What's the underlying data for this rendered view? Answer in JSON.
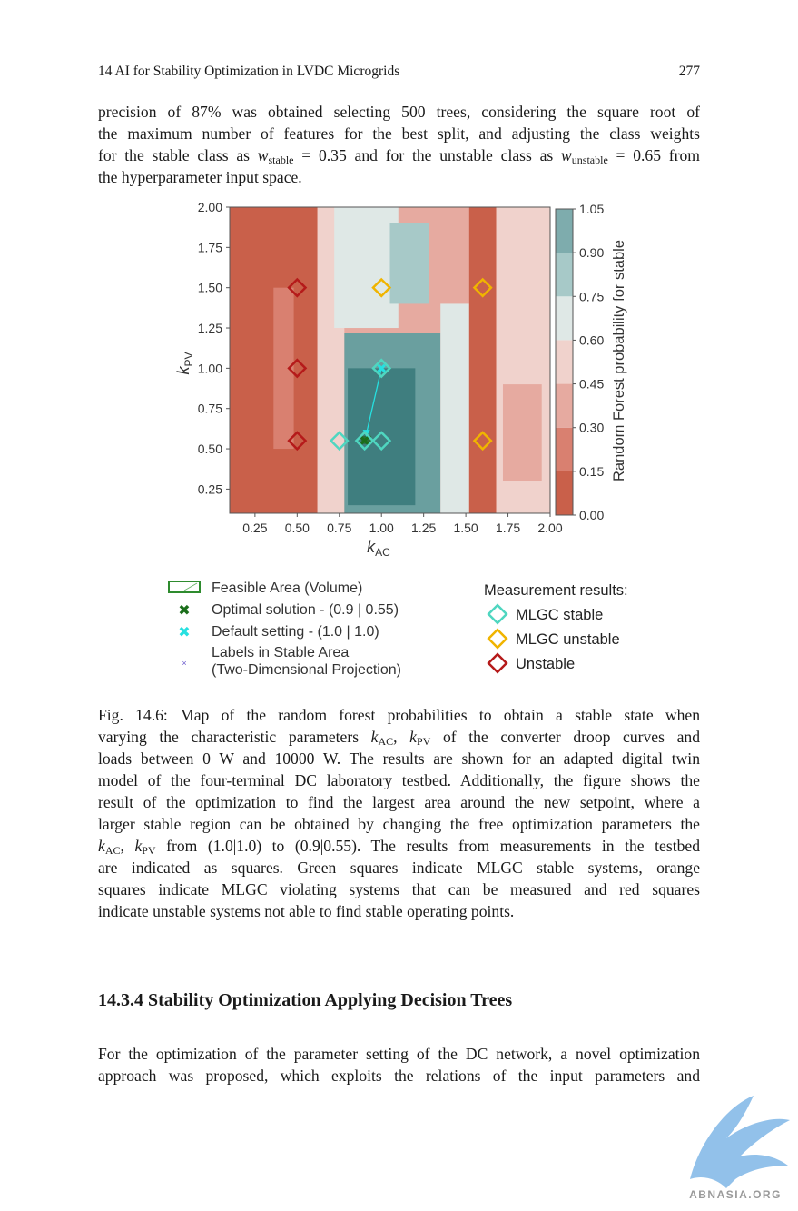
{
  "header": {
    "running_title": "14  AI for Stability Optimization in LVDC Microgrids",
    "page_number": "277"
  },
  "intro": {
    "line1": "precision of 87% was obtained selecting 500 trees, considering the square root of",
    "line2": "the maximum number of features for the best split, and adjusting the class weights",
    "line3_a": "for the stable class as ",
    "w_sym": "w",
    "sub_stable": "stable",
    "line3_b": " = 0.35 and for the unstable class as ",
    "sub_unstable": "unstable",
    "line3_c": " = 0.65 from",
    "line4": "the hyperparameter input space."
  },
  "figure": {
    "y_ticks": [
      "2.00",
      "1.75",
      "1.50",
      "1.25",
      "1.00",
      "0.75",
      "0.50",
      "0.25"
    ],
    "x_ticks": [
      "0.25",
      "0.50",
      "0.75",
      "1.00",
      "1.25",
      "1.50",
      "1.75",
      "2.00"
    ],
    "xlabel_k": "k",
    "xlabel_sub": "AC",
    "ylabel_k": "k",
    "ylabel_sub": "PV",
    "colorbar_ticks": [
      "1.05",
      "0.90",
      "0.75",
      "0.60",
      "0.45",
      "0.30",
      "0.15",
      "0.00"
    ],
    "colorbar_label": "Random Forest probability for stable",
    "legend": {
      "feasible": "Feasible Area (Volume)",
      "optimal": "Optimal solution - (0.9 | 0.55)",
      "default": "Default setting - (1.0 | 1.0)",
      "labels_1": "Labels in Stable Area",
      "labels_2": "(Two-Dimensional Projection)",
      "meas_title": "Measurement results:",
      "mlgc_stable": "MLGC stable",
      "mlgc_unstable": "MLGC unstable",
      "unstable": "Unstable"
    },
    "colors": {
      "stable": "#3f7e7f",
      "unstable": "#c9604a",
      "mlgc_stable": "#4fd6c0",
      "mlgc_unstable": "#f0b400",
      "unstable_marker": "#b51a1a",
      "optimal": "#1b6e1b",
      "default": "#26e0e0"
    }
  },
  "chart_data": {
    "type": "heatmap",
    "xlabel": "kAC",
    "ylabel": "kPV",
    "xlim": [
      0.1,
      2.0
    ],
    "ylim": [
      0.1,
      2.0
    ],
    "colorbar": {
      "label": "Random Forest probability for stable",
      "range": [
        0.0,
        1.05
      ]
    },
    "series": [
      {
        "name": "MLGC stable",
        "points": [
          [
            0.75,
            0.55
          ],
          [
            0.9,
            0.55
          ],
          [
            1.0,
            0.55
          ],
          [
            1.0,
            1.0
          ]
        ]
      },
      {
        "name": "MLGC unstable",
        "points": [
          [
            1.0,
            1.5
          ],
          [
            1.6,
            1.5
          ],
          [
            1.6,
            0.55
          ]
        ]
      },
      {
        "name": "Unstable",
        "points": [
          [
            0.5,
            1.5
          ],
          [
            0.5,
            1.0
          ],
          [
            0.5,
            0.55
          ]
        ]
      },
      {
        "name": "Optimal solution - (0.9 | 0.55)",
        "points": [
          [
            0.9,
            0.55
          ]
        ]
      },
      {
        "name": "Default setting - (1.0 | 1.0)",
        "points": [
          [
            1.0,
            1.0
          ]
        ]
      }
    ]
  },
  "caption": {
    "l1": "Fig. 14.6: Map of the random forest probabilities to obtain a stable state when",
    "l2_a": "varying the characteristic parameters ",
    "l2_b": "k",
    "l2_sub1": "AC",
    "l2_c": ", ",
    "l2_sub2": "PV",
    "l2_d": " of the converter droop curves and",
    "l3": "loads between 0 W and 10000 W. The results are shown for an adapted digital twin",
    "l4": "model of the four-terminal DC laboratory testbed. Additionally, the figure shows the",
    "l5": "result of the optimization to find the largest area around the new setpoint, where a",
    "l6": "larger stable region can be obtained by changing the free optimization parameters the",
    "l7_b": " from (1.0|1.0) to (0.9|0.55). The results from measurements in the testbed",
    "l8": "are indicated as squares. Green squares indicate MLGC stable systems, orange",
    "l9": "squares indicate MLGC violating systems that can be measured and red squares",
    "l10": "indicate unstable systems not able to find stable operating points."
  },
  "section": {
    "heading": "14.3.4  Stability Optimization Applying Decision Trees"
  },
  "body": {
    "l1": "For the optimization of the parameter setting of the DC network, a novel optimization",
    "l2": "approach was proposed, which exploits the relations of the input parameters and"
  },
  "watermark": {
    "text": "ABNASIA.ORG"
  }
}
